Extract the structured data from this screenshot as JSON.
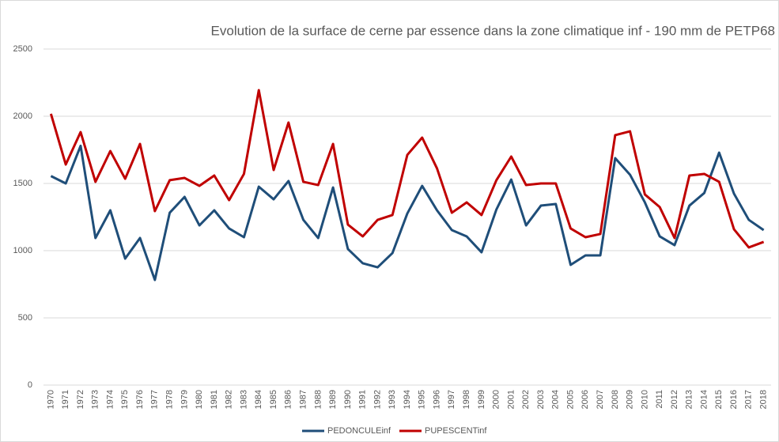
{
  "chart_data": {
    "type": "line",
    "title": "Evolution de la surface de cerne par essence dans la zone climatique inf - 190 mm de PETP68",
    "categories": [
      "1970",
      "1971",
      "1972",
      "1973",
      "1974",
      "1975",
      "1976",
      "1977",
      "1978",
      "1979",
      "1980",
      "1981",
      "1982",
      "1983",
      "1984",
      "1985",
      "1986",
      "1987",
      "1988",
      "1989",
      "1990",
      "1991",
      "1992",
      "1993",
      "1994",
      "1995",
      "1996",
      "1997",
      "1998",
      "1999",
      "2000",
      "2001",
      "2002",
      "2003",
      "2004",
      "2005",
      "2006",
      "2007",
      "2008",
      "2009",
      "2010",
      "2011",
      "2012",
      "2013",
      "2014",
      "2015",
      "2016",
      "2017",
      "2018"
    ],
    "series": [
      {
        "name": "PEDONCULEinf",
        "color": "#1f4e79",
        "values": [
          1555,
          1500,
          1780,
          1094,
          1300,
          941,
          1094,
          782,
          1282,
          1400,
          1188,
          1300,
          1165,
          1100,
          1476,
          1382,
          1518,
          1229,
          1094,
          1470,
          1012,
          906,
          876,
          982,
          1276,
          1482,
          1300,
          1153,
          1106,
          988,
          1306,
          1529,
          1188,
          1335,
          1347,
          894,
          965,
          965,
          1688,
          1565,
          1359,
          1106,
          1041,
          1335,
          1429,
          1729,
          1424,
          1229,
          1153
        ]
      },
      {
        "name": "PUPESCENTinf",
        "color": "#c00000",
        "values": [
          2018,
          1641,
          1882,
          1512,
          1741,
          1535,
          1794,
          1294,
          1524,
          1541,
          1482,
          1559,
          1376,
          1571,
          2194,
          1600,
          1953,
          1512,
          1488,
          1794,
          1194,
          1106,
          1229,
          1265,
          1712,
          1841,
          1612,
          1282,
          1359,
          1265,
          1524,
          1700,
          1488,
          1500,
          1500,
          1165,
          1100,
          1124,
          1859,
          1888,
          1418,
          1324,
          1094,
          1559,
          1571,
          1512,
          1159,
          1024,
          1065
        ]
      }
    ],
    "ylim": [
      0,
      2500
    ],
    "yticks": [
      0,
      500,
      1000,
      1500,
      2000,
      2500
    ],
    "grid": true,
    "legend": "bottom"
  }
}
